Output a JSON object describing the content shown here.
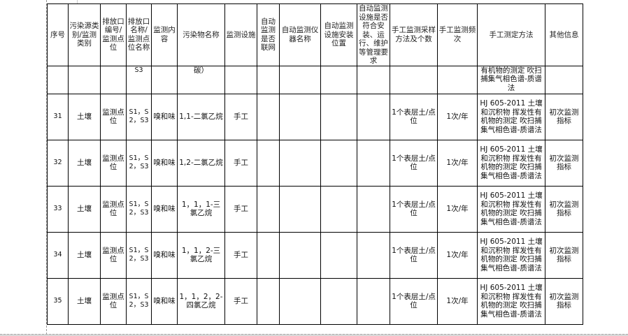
{
  "headers": [
    "序号",
    "污染源类别/监测类别",
    "排放口编号/监测点位",
    "排放口名称/监测点位名称",
    "监测内容",
    "污染物名称",
    "监测设施",
    "自动监测是否联网",
    "自动监测仪器名称",
    "自动监测设施安装位置",
    "自动监测设施是否符合安装、运行、维护等管理要求",
    "手工监测采样方法及个数",
    "手工监测频次",
    "手工测定方法",
    "其他信息"
  ],
  "continuation": {
    "point_name": "S3",
    "pollutant": "碳）",
    "method": "有机物的测定 吹扫捕集气相色谱-质谱法"
  },
  "rows": [
    {
      "no": "31",
      "category": "土壤",
      "point_id": "监测点位",
      "point_name": "S1，S2，S3",
      "content": "嗅和味",
      "pollutant": "1,1-二氯乙烷",
      "facility": "手工",
      "sampling": "1个表层土/点位",
      "frequency": "1次/年",
      "method": "HJ 605-2011 土壤和沉积物 挥发性有机物的测定 吹扫捕集气相色谱-质谱法",
      "other": "初次监测指标"
    },
    {
      "no": "32",
      "category": "土壤",
      "point_id": "监测点位",
      "point_name": "S1，S2，S3",
      "content": "嗅和味",
      "pollutant": "1,2-二氯乙烷",
      "facility": "手工",
      "sampling": "1个表层土/点位",
      "frequency": "1次/年",
      "method": "HJ 605-2011 土壤和沉积物 挥发性有机物的测定 吹扫捕集气相色谱-质谱法",
      "other": "初次监测指标"
    },
    {
      "no": "33",
      "category": "土壤",
      "point_id": "监测点位",
      "point_name": "S1，S2，S3",
      "content": "嗅和味",
      "pollutant": "1，1，1-三氯乙烷",
      "facility": "手工",
      "sampling": "1个表层土/点位",
      "frequency": "1次/年",
      "method": "HJ 605-2011 土壤和沉积物 挥发性有机物的测定 吹扫捕集气相色谱-质谱法",
      "other": "初次监测指标"
    },
    {
      "no": "34",
      "category": "土壤",
      "point_id": "监测点位",
      "point_name": "S1，S2，S3",
      "content": "嗅和味",
      "pollutant": "1，1，2-三氯乙烷",
      "facility": "手工",
      "sampling": "1个表层土/点位",
      "frequency": "1次/年",
      "method": "HJ 605-2011 土壤和沉积物 挥发性有机物的测定 吹扫捕集气相色谱-质谱法",
      "other": "初次监测指标"
    },
    {
      "no": "35",
      "category": "土壤",
      "point_id": "监测点位",
      "point_name": "S1，S2，S3",
      "content": "嗅和味",
      "pollutant": "1，1，2，2-四氯乙烷",
      "facility": "手工",
      "sampling": "1个表层土/点位",
      "frequency": "1次/年",
      "method": "HJ 605-2011 土壤和沉积物 挥发性有机物的测定 吹扫捕集气相色谱-质谱法",
      "other": "初次监测指标"
    }
  ]
}
